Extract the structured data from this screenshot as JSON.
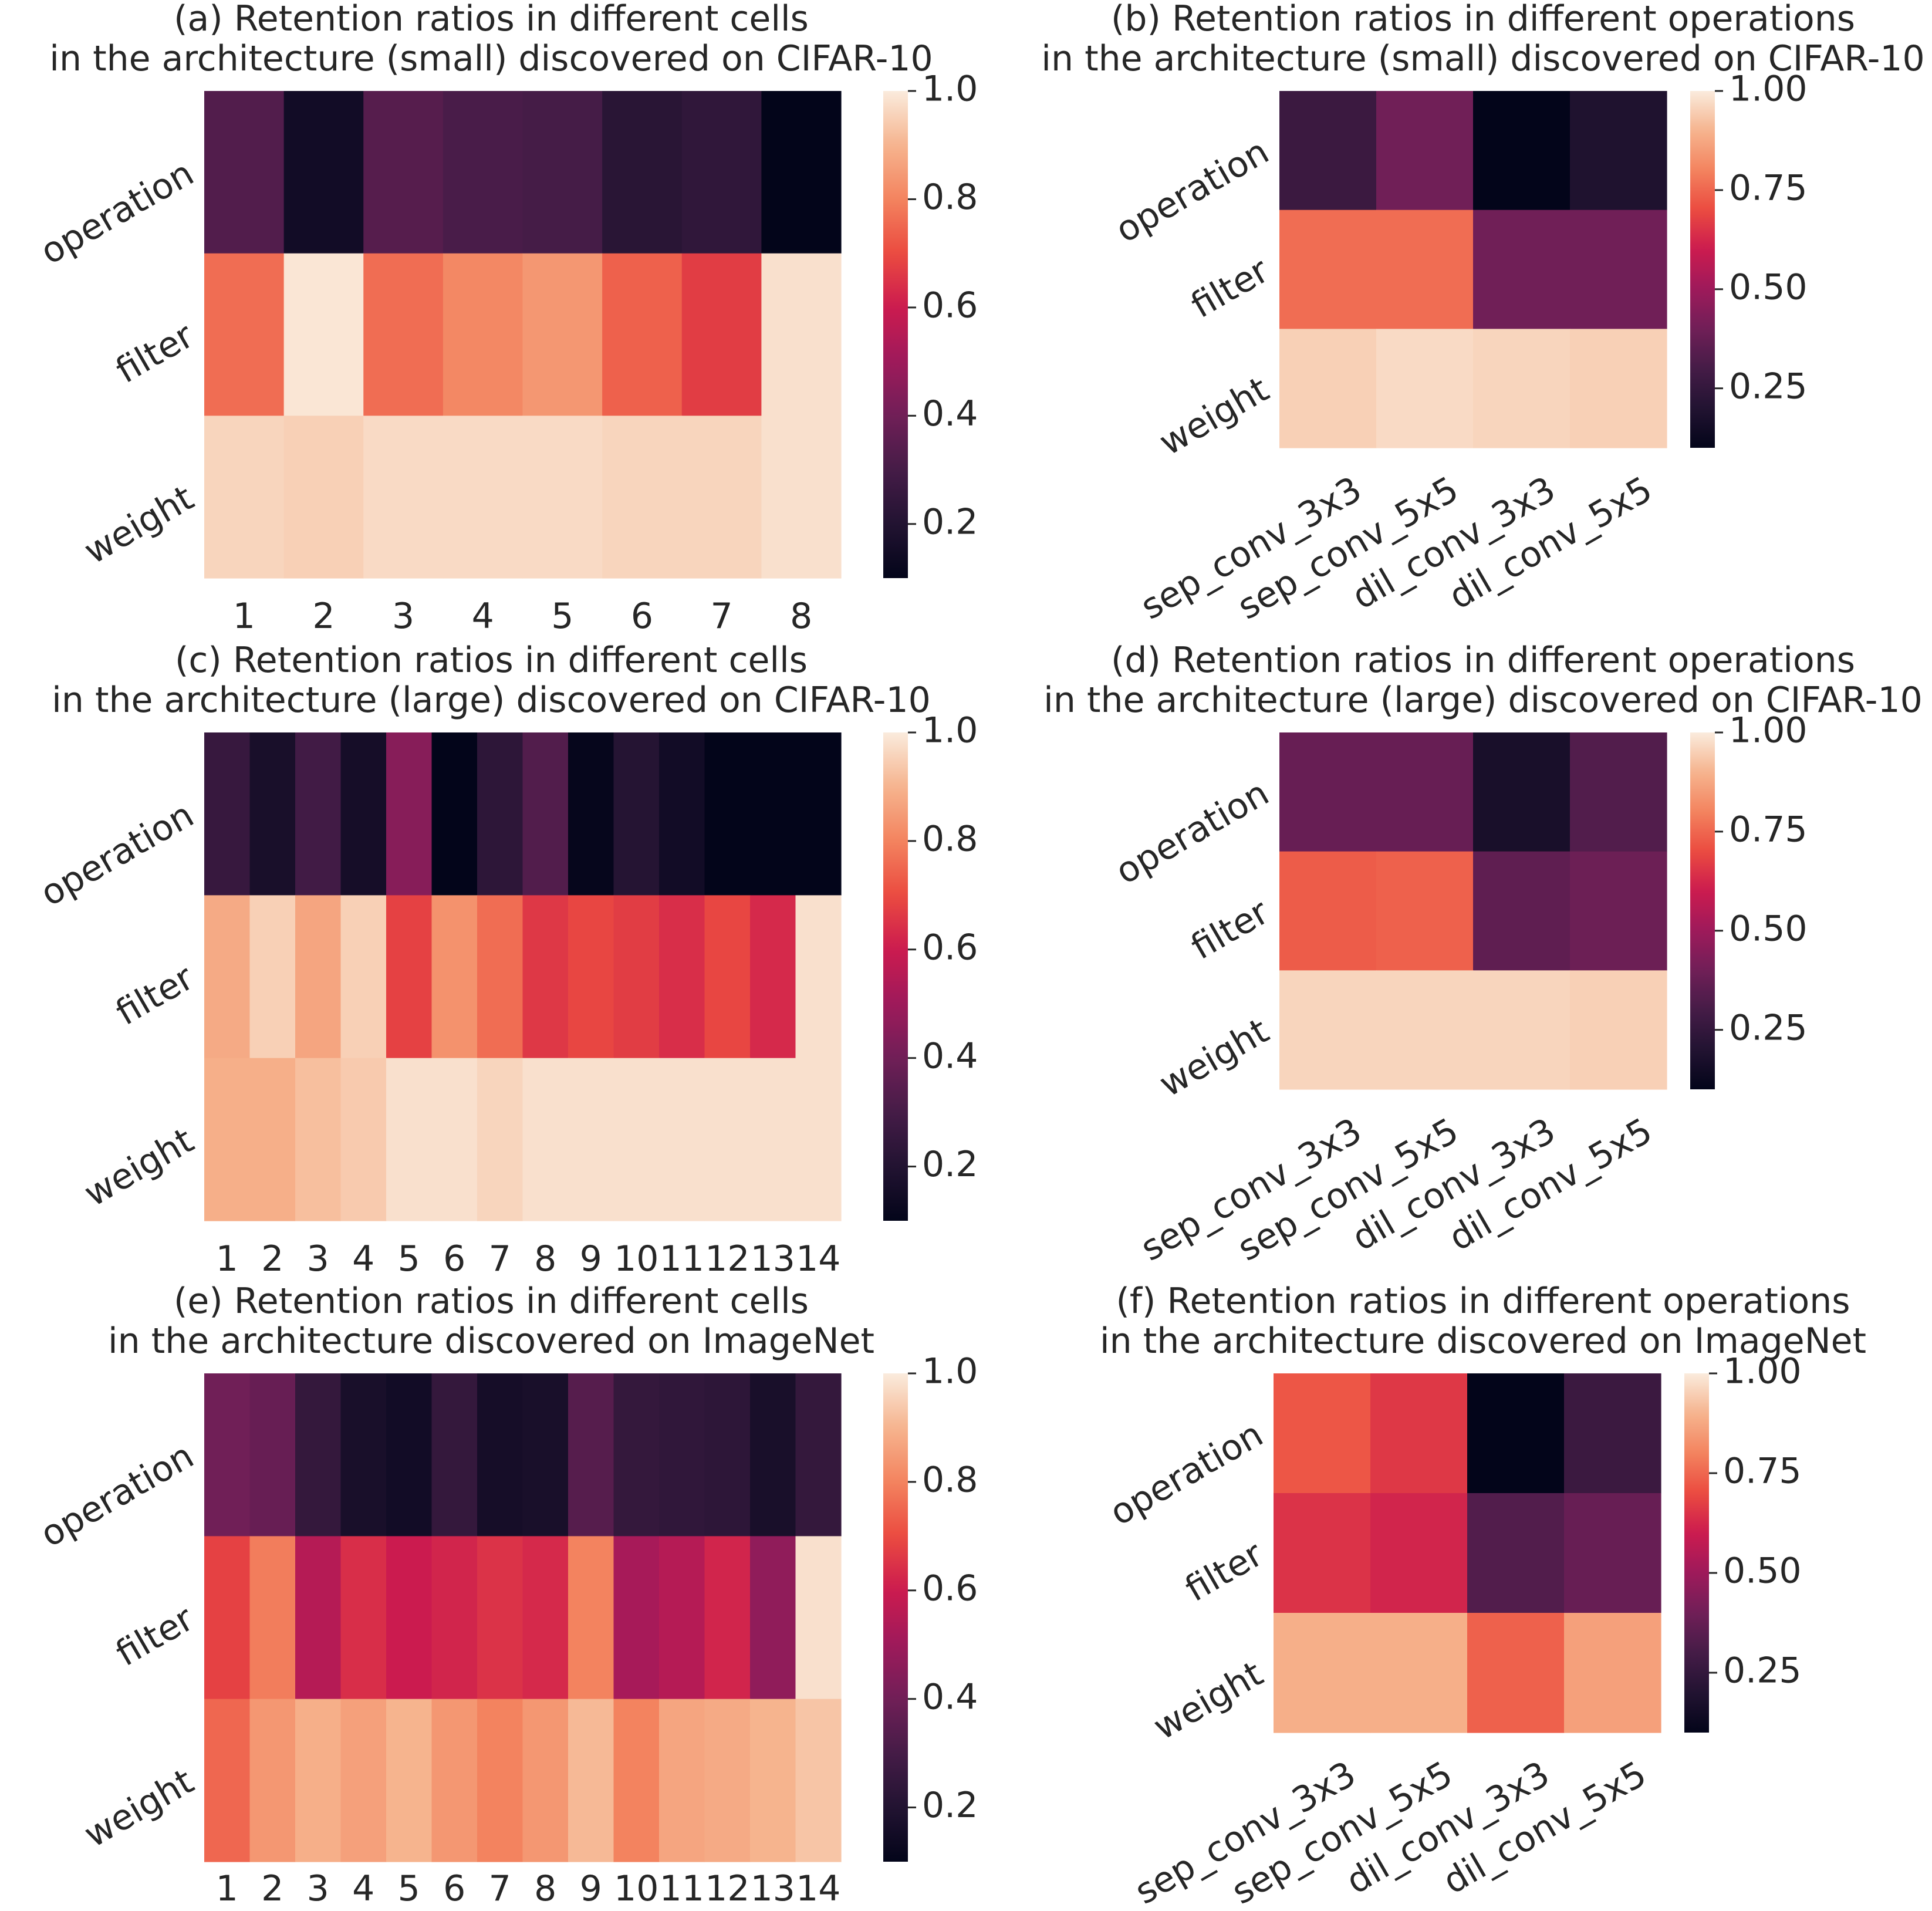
{
  "chart_data": [
    {
      "id": "a",
      "type": "heatmap",
      "title": [
        "(a) Retention ratios in different cells",
        "in the architecture (small) discovered on CIFAR-10"
      ],
      "row_labels": [
        "operation",
        "filter",
        "weight"
      ],
      "col_labels": [
        "1",
        "2",
        "3",
        "4",
        "5",
        "6",
        "7",
        "8"
      ],
      "values": [
        [
          0.33,
          0.15,
          0.34,
          0.31,
          0.3,
          0.22,
          0.24,
          0.1
        ],
        [
          0.76,
          0.99,
          0.76,
          0.81,
          0.84,
          0.74,
          0.67,
          0.98
        ],
        [
          0.96,
          0.95,
          0.97,
          0.97,
          0.97,
          0.96,
          0.96,
          0.98
        ]
      ],
      "colorbar": {
        "min": 0.1,
        "max": 1.0,
        "ticks": [
          0.2,
          0.4,
          0.6,
          0.8,
          1.0
        ],
        "tick_labels": [
          "0.2",
          "0.4",
          "0.6",
          "0.8",
          "1.0"
        ]
      }
    },
    {
      "id": "b",
      "type": "heatmap",
      "title": [
        "(b) Retention ratios in different operations",
        "in the architecture (small) discovered on CIFAR-10"
      ],
      "row_labels": [
        "operation",
        "filter",
        "weight"
      ],
      "col_labels": [
        "sep_conv_3x3",
        "sep_conv_5x5",
        "dil_conv_3x3",
        "dil_conv_5x5"
      ],
      "values": [
        [
          0.27,
          0.4,
          0.1,
          0.19
        ],
        [
          0.76,
          0.76,
          0.4,
          0.4
        ],
        [
          0.95,
          0.97,
          0.96,
          0.95
        ]
      ],
      "colorbar": {
        "min": 0.1,
        "max": 1.0,
        "ticks": [
          0.25,
          0.5,
          0.75,
          1.0
        ],
        "tick_labels": [
          "0.25",
          "0.50",
          "0.75",
          "1.00"
        ]
      }
    },
    {
      "id": "c",
      "type": "heatmap",
      "title": [
        "(c) Retention ratios in different cells",
        "in the architecture (large) discovered on CIFAR-10"
      ],
      "row_labels": [
        "operation",
        "filter",
        "weight"
      ],
      "col_labels": [
        "1",
        "2",
        "3",
        "4",
        "5",
        "6",
        "7",
        "8",
        "9",
        "10",
        "11",
        "12",
        "13",
        "14"
      ],
      "values": [
        [
          0.26,
          0.17,
          0.29,
          0.16,
          0.45,
          0.1,
          0.23,
          0.33,
          0.11,
          0.21,
          0.15,
          0.1,
          0.1,
          0.1
        ],
        [
          0.88,
          0.95,
          0.87,
          0.95,
          0.68,
          0.83,
          0.76,
          0.66,
          0.69,
          0.67,
          0.64,
          0.69,
          0.63,
          0.98
        ],
        [
          0.89,
          0.89,
          0.92,
          0.94,
          0.98,
          0.98,
          0.96,
          0.98,
          0.98,
          0.98,
          0.98,
          0.98,
          0.98,
          0.98
        ]
      ],
      "colorbar": {
        "min": 0.1,
        "max": 1.0,
        "ticks": [
          0.2,
          0.4,
          0.6,
          0.8,
          1.0
        ],
        "tick_labels": [
          "0.2",
          "0.4",
          "0.6",
          "0.8",
          "1.0"
        ]
      }
    },
    {
      "id": "d",
      "type": "heatmap",
      "title": [
        "(d) Retention ratios in different operations",
        "in the architecture (large) discovered on CIFAR-10"
      ],
      "row_labels": [
        "operation",
        "filter",
        "weight"
      ],
      "col_labels": [
        "sep_conv_3x3",
        "sep_conv_5x5",
        "dil_conv_3x3",
        "dil_conv_5x5"
      ],
      "values": [
        [
          0.38,
          0.38,
          0.17,
          0.33
        ],
        [
          0.73,
          0.74,
          0.36,
          0.39
        ],
        [
          0.96,
          0.96,
          0.96,
          0.95
        ]
      ],
      "colorbar": {
        "min": 0.1,
        "max": 1.0,
        "ticks": [
          0.25,
          0.5,
          0.75,
          1.0
        ],
        "tick_labels": [
          "0.25",
          "0.50",
          "0.75",
          "1.00"
        ]
      }
    },
    {
      "id": "e",
      "type": "heatmap",
      "title": [
        "(e) Retention ratios in different cells",
        "in the architecture discovered on ImageNet"
      ],
      "row_labels": [
        "operation",
        "filter",
        "weight"
      ],
      "col_labels": [
        "1",
        "2",
        "3",
        "4",
        "5",
        "6",
        "7",
        "8",
        "9",
        "10",
        "11",
        "12",
        "13",
        "14"
      ],
      "values": [
        [
          0.4,
          0.38,
          0.25,
          0.17,
          0.15,
          0.25,
          0.16,
          0.17,
          0.34,
          0.25,
          0.24,
          0.23,
          0.17,
          0.25
        ],
        [
          0.68,
          0.79,
          0.55,
          0.64,
          0.6,
          0.62,
          0.65,
          0.63,
          0.8,
          0.52,
          0.55,
          0.62,
          0.47,
          0.98
        ],
        [
          0.75,
          0.84,
          0.89,
          0.86,
          0.9,
          0.84,
          0.8,
          0.84,
          0.91,
          0.8,
          0.87,
          0.88,
          0.9,
          0.93
        ]
      ],
      "colorbar": {
        "min": 0.1,
        "max": 1.0,
        "ticks": [
          0.2,
          0.4,
          0.6,
          0.8,
          1.0
        ],
        "tick_labels": [
          "0.2",
          "0.4",
          "0.6",
          "0.8",
          "1.0"
        ]
      }
    },
    {
      "id": "f",
      "type": "heatmap",
      "title": [
        "(f) Retention ratios in different operations",
        "in the architecture discovered on ImageNet"
      ],
      "row_labels": [
        "operation",
        "filter",
        "weight"
      ],
      "col_labels": [
        "sep_conv_3x3",
        "sep_conv_5x5",
        "dil_conv_3x3",
        "dil_conv_5x5"
      ],
      "values": [
        [
          0.72,
          0.66,
          0.1,
          0.27
        ],
        [
          0.65,
          0.62,
          0.33,
          0.38
        ],
        [
          0.89,
          0.89,
          0.74,
          0.86
        ]
      ],
      "colorbar": {
        "min": 0.1,
        "max": 1.0,
        "ticks": [
          0.25,
          0.5,
          0.75,
          1.0
        ],
        "tick_labels": [
          "0.25",
          "0.50",
          "0.75",
          "1.00"
        ]
      }
    }
  ],
  "colormap": {
    "name": "rocket",
    "stops": [
      "#03051a",
      "#221331",
      "#451c47",
      "#701f57",
      "#9e1a5b",
      "#cb1b4f",
      "#eb4b40",
      "#f3835f",
      "#f6b48e",
      "#faebdd"
    ]
  }
}
